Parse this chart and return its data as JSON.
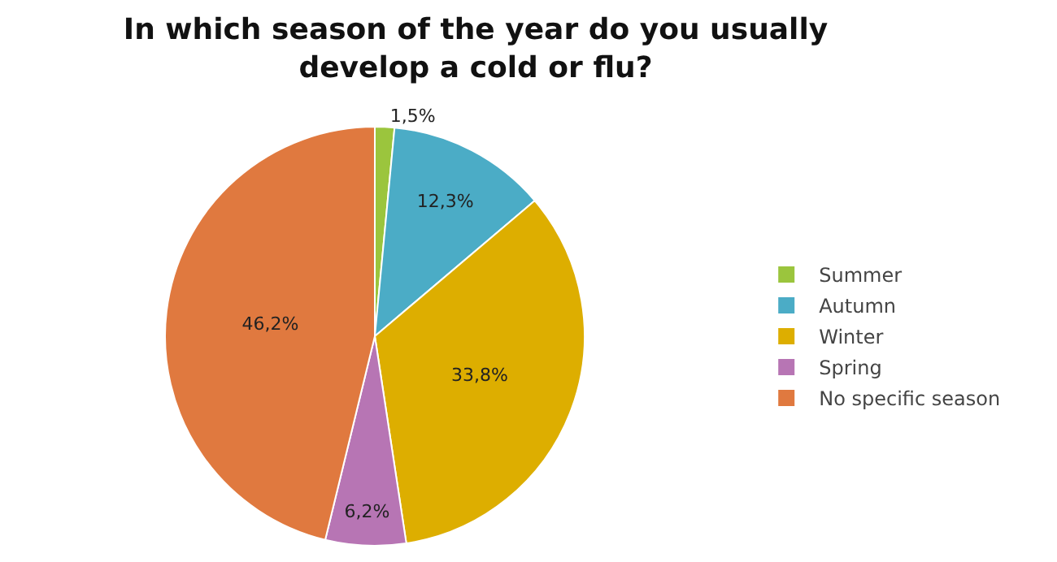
{
  "chart_data": {
    "type": "pie",
    "title": "In which season of the year do you usually\ndevelop a cold or flu?",
    "categories": [
      "Summer",
      "Autumn",
      "Winter",
      "Spring",
      "No specific season"
    ],
    "values": [
      1.5,
      12.3,
      33.8,
      6.2,
      46.2
    ],
    "value_labels": [
      "1,5%",
      "12,3%",
      "33,8%",
      "6,2%",
      "46,2%"
    ],
    "colors": [
      "#9bc53d",
      "#4bacc6",
      "#ddae00",
      "#b775b4",
      "#e0793f"
    ],
    "legend": "right"
  }
}
